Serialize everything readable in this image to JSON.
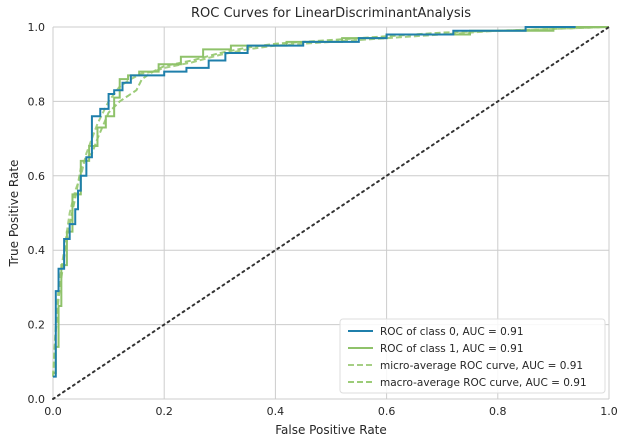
{
  "chart_data": {
    "type": "line",
    "title": "ROC Curves for LinearDiscriminantAnalysis",
    "xlabel": "False Positive Rate",
    "ylabel": "True Positive Rate",
    "xlim": [
      0,
      1
    ],
    "ylim": [
      0,
      1
    ],
    "xticks": [
      "0.0",
      "0.2",
      "0.4",
      "0.6",
      "0.8",
      "1.0"
    ],
    "yticks": [
      "0.0",
      "0.2",
      "0.4",
      "0.6",
      "0.8",
      "1.0"
    ],
    "grid": true,
    "legend_position": "lower-right",
    "colors": {
      "class0": "#1f7fab",
      "class1": "#8fc26a",
      "micro": "#a6cf85",
      "macro": "#9ccc78",
      "diagonal": "#333333",
      "grid": "#cccccc",
      "background": "#ffffff"
    },
    "series": [
      {
        "name": "ROC of class 0, AUC = 0.91",
        "style": "solid",
        "color_key": "class0",
        "x": [
          0.0,
          0.005,
          0.005,
          0.01,
          0.01,
          0.02,
          0.02,
          0.03,
          0.03,
          0.04,
          0.04,
          0.045,
          0.045,
          0.05,
          0.05,
          0.06,
          0.06,
          0.07,
          0.07,
          0.085,
          0.085,
          0.1,
          0.1,
          0.11,
          0.11,
          0.125,
          0.125,
          0.14,
          0.14,
          0.2,
          0.2,
          0.24,
          0.24,
          0.28,
          0.28,
          0.31,
          0.31,
          0.35,
          0.35,
          0.45,
          0.45,
          0.55,
          0.55,
          0.6,
          0.6,
          0.72,
          0.72,
          0.85,
          0.85,
          0.94
        ],
        "y": [
          0.06,
          0.06,
          0.29,
          0.29,
          0.35,
          0.35,
          0.43,
          0.43,
          0.47,
          0.47,
          0.51,
          0.51,
          0.56,
          0.56,
          0.6,
          0.6,
          0.65,
          0.65,
          0.76,
          0.76,
          0.78,
          0.78,
          0.82,
          0.82,
          0.83,
          0.83,
          0.85,
          0.85,
          0.87,
          0.87,
          0.88,
          0.88,
          0.89,
          0.89,
          0.91,
          0.91,
          0.93,
          0.93,
          0.95,
          0.95,
          0.96,
          0.96,
          0.97,
          0.97,
          0.98,
          0.98,
          0.99,
          0.99,
          1.0,
          1.0
        ]
      },
      {
        "name": "ROC of class 1, AUC = 0.91",
        "style": "solid",
        "color_key": "class1",
        "x": [
          0.0,
          0.005,
          0.005,
          0.01,
          0.01,
          0.015,
          0.015,
          0.025,
          0.025,
          0.035,
          0.035,
          0.05,
          0.05,
          0.065,
          0.065,
          0.08,
          0.08,
          0.095,
          0.095,
          0.11,
          0.11,
          0.12,
          0.12,
          0.135,
          0.135,
          0.155,
          0.155,
          0.19,
          0.19,
          0.23,
          0.23,
          0.27,
          0.27,
          0.32,
          0.32,
          0.42,
          0.42,
          0.52,
          0.52,
          0.6,
          0.6,
          0.75,
          0.75,
          0.9,
          0.9,
          1.0
        ],
        "y": [
          0.07,
          0.07,
          0.14,
          0.14,
          0.25,
          0.25,
          0.36,
          0.36,
          0.45,
          0.45,
          0.55,
          0.55,
          0.64,
          0.64,
          0.68,
          0.68,
          0.73,
          0.73,
          0.76,
          0.76,
          0.81,
          0.81,
          0.86,
          0.86,
          0.87,
          0.87,
          0.88,
          0.88,
          0.9,
          0.9,
          0.92,
          0.92,
          0.94,
          0.94,
          0.95,
          0.95,
          0.96,
          0.96,
          0.97,
          0.97,
          0.98,
          0.98,
          0.99,
          0.99,
          1.0,
          1.0
        ]
      },
      {
        "name": "micro-average ROC curve, AUC = 0.91",
        "style": "dashed",
        "color_key": "micro",
        "x": [
          0.0,
          0.005,
          0.01,
          0.02,
          0.03,
          0.04,
          0.05,
          0.06,
          0.07,
          0.08,
          0.09,
          0.1,
          0.12,
          0.14,
          0.16,
          0.18,
          0.2,
          0.25,
          0.3,
          0.35,
          0.4,
          0.5,
          0.6,
          0.7,
          0.8,
          0.9,
          1.0
        ],
        "y": [
          0.06,
          0.2,
          0.3,
          0.4,
          0.5,
          0.56,
          0.6,
          0.66,
          0.7,
          0.74,
          0.77,
          0.8,
          0.84,
          0.86,
          0.875,
          0.88,
          0.89,
          0.905,
          0.925,
          0.94,
          0.95,
          0.96,
          0.97,
          0.98,
          0.99,
          0.995,
          1.0
        ]
      },
      {
        "name": "macro-average ROC curve, AUC = 0.91",
        "style": "dashed",
        "color_key": "macro",
        "x": [
          0.0,
          0.005,
          0.01,
          0.02,
          0.03,
          0.04,
          0.05,
          0.06,
          0.07,
          0.08,
          0.1,
          0.12,
          0.14,
          0.15,
          0.16,
          0.18,
          0.2,
          0.25,
          0.3,
          0.35,
          0.4,
          0.5,
          0.6,
          0.7,
          0.8,
          0.9,
          1.0
        ],
        "y": [
          0.06,
          0.18,
          0.27,
          0.38,
          0.47,
          0.54,
          0.62,
          0.65,
          0.66,
          0.7,
          0.77,
          0.8,
          0.82,
          0.83,
          0.86,
          0.88,
          0.895,
          0.91,
          0.93,
          0.945,
          0.955,
          0.965,
          0.975,
          0.985,
          0.99,
          0.995,
          1.0
        ]
      },
      {
        "name": "",
        "style": "dotted",
        "color_key": "diagonal",
        "x": [
          0,
          1
        ],
        "y": [
          0,
          1
        ]
      }
    ]
  }
}
